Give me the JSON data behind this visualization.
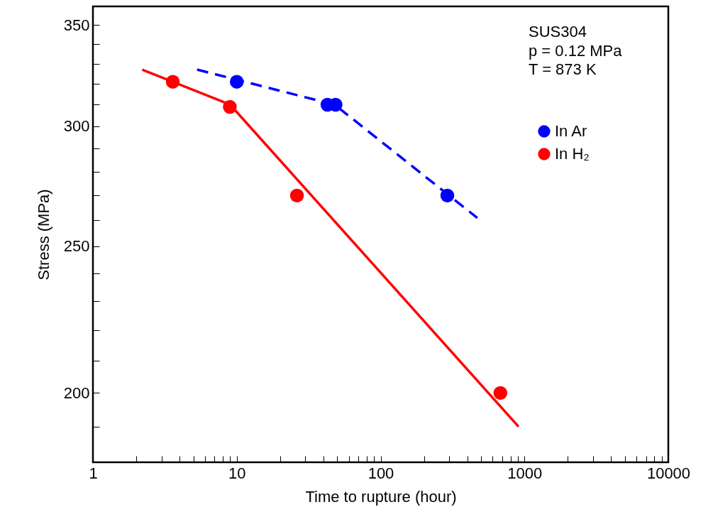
{
  "chart_data": {
    "type": "scatter",
    "xlabel": "Time to rupture (hour)",
    "ylabel": "Stress (MPa)",
    "log": "xy",
    "legend": "top right",
    "annotations": [
      "SUS304",
      "p = 0.12 MPa",
      "T = 873 K"
    ],
    "xlim": [
      1,
      10000
    ],
    "xticks": [
      1,
      {
        "value": 2,
        "label": null
      },
      {
        "value": 3,
        "label": null
      },
      {
        "value": 4,
        "label": null
      },
      {
        "value": 5,
        "label": null
      },
      {
        "value": 6,
        "label": null
      },
      {
        "value": 7,
        "label": null
      },
      {
        "value": 8,
        "label": null
      },
      {
        "value": 9,
        "label": null
      },
      10,
      {
        "value": 20,
        "label": null
      },
      {
        "value": 30,
        "label": null
      },
      {
        "value": 40,
        "label": null
      },
      {
        "value": 50,
        "label": null
      },
      {
        "value": 60,
        "label": null
      },
      {
        "value": 70,
        "label": null
      },
      {
        "value": 80,
        "label": null
      },
      {
        "value": 90,
        "label": null
      },
      100,
      {
        "value": 200,
        "label": null
      },
      {
        "value": 300,
        "label": null
      },
      {
        "value": 400,
        "label": null
      },
      {
        "value": 500,
        "label": null
      },
      {
        "value": 600,
        "label": null
      },
      {
        "value": 700,
        "label": null
      },
      {
        "value": 800,
        "label": null
      },
      {
        "value": 900,
        "label": null
      },
      1000,
      {
        "value": 2000,
        "label": null
      },
      {
        "value": 3000,
        "label": null
      },
      {
        "value": 4000,
        "label": null
      },
      {
        "value": 5000,
        "label": null
      },
      {
        "value": 6000,
        "label": null
      },
      {
        "value": 7000,
        "label": null
      },
      {
        "value": 8000,
        "label": null
      },
      {
        "value": 9000,
        "label": null
      },
      10000
    ],
    "ylim": [
      180,
      360
    ],
    "yticks": [
      {
        "value": 190,
        "label": null
      },
      200,
      {
        "value": 210,
        "label": null
      },
      {
        "value": 220,
        "label": null
      },
      {
        "value": 230,
        "label": null
      },
      {
        "value": 240,
        "label": null
      },
      250,
      {
        "value": 260,
        "label": null
      },
      {
        "value": 270,
        "label": null
      },
      {
        "value": 280,
        "label": null
      },
      {
        "value": 290,
        "label": null
      },
      300,
      {
        "value": 310,
        "label": null
      },
      {
        "value": 320,
        "label": null
      },
      {
        "value": 330,
        "label": null
      },
      {
        "value": 340,
        "label": null
      },
      350
    ],
    "series": [
      {
        "name": "In Ar",
        "color": "#0000ff",
        "marker": "circle",
        "x": [
          10,
          42.7,
          48.6,
          291
        ],
        "values": [
          321,
          310,
          310,
          270
        ]
      },
      {
        "name": "In H₂",
        "color": "#ff0000",
        "marker": "circle",
        "x": [
          3.59,
          8.95,
          26.2,
          680
        ],
        "values": [
          321,
          309,
          270,
          200
        ]
      },
      {
        "color": "#0000ff",
        "type": "line",
        "line_style": "dashed",
        "x": [
          5.3,
          48,
          470
        ],
        "values": [
          327,
          310,
          261
        ]
      },
      {
        "color": "#ff0000",
        "type": "line",
        "line_style": "solid",
        "x": [
          2.2,
          9,
          910
        ],
        "values": [
          327,
          310,
          190
        ]
      }
    ]
  }
}
